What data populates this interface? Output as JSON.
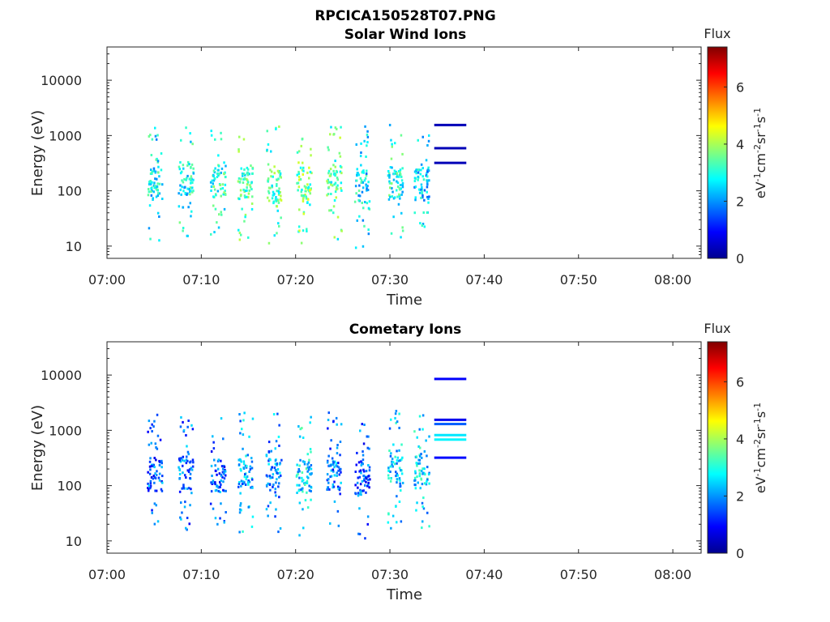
{
  "figure_title": "RPCICA150528T07.PNG",
  "chart_data": [
    {
      "type": "heatmap",
      "title": "Solar Wind Ions",
      "xlabel": "Time",
      "ylabel": "Energy (eV)",
      "x_ticks": [
        "07:00",
        "07:10",
        "07:20",
        "07:30",
        "07:40",
        "07:50",
        "08:00"
      ],
      "x_tick_minutes": [
        0,
        10,
        20,
        30,
        40,
        50,
        60
      ],
      "xlim_minutes": [
        0,
        63
      ],
      "y_scale": "log",
      "y_ticks": [
        "10",
        "100",
        "1000",
        "10000"
      ],
      "y_tick_values": [
        10,
        100,
        1000,
        10000
      ],
      "ylim": [
        6,
        40000
      ],
      "colorbar": {
        "label": "Flux",
        "unit": "eV-1cm-2sr-1s-1",
        "ticks": [
          "0",
          "2",
          "4",
          "6"
        ],
        "tick_values": [
          0,
          2,
          4,
          6
        ],
        "range": [
          0,
          7.4
        ],
        "colormap": "jet"
      },
      "clusters": [
        {
          "t": 5.0,
          "e": 130,
          "flux": 2.7
        },
        {
          "t": 8.3,
          "e": 160,
          "flux": 2.8
        },
        {
          "t": 11.7,
          "e": 140,
          "flux": 3.1
        },
        {
          "t": 14.6,
          "e": 130,
          "flux": 3.3
        },
        {
          "t": 17.6,
          "e": 120,
          "flux": 3.4
        },
        {
          "t": 20.8,
          "e": 130,
          "flux": 3.6
        },
        {
          "t": 24.0,
          "e": 140,
          "flux": 3.4
        },
        {
          "t": 27.0,
          "e": 110,
          "flux": 2.6
        },
        {
          "t": 30.5,
          "e": 130,
          "flux": 2.9
        },
        {
          "t": 33.3,
          "e": 120,
          "flux": 2.4
        }
      ],
      "bands": [
        {
          "t_start": 34.7,
          "t_end": 38.1,
          "e": 1550,
          "flux": 0.4
        },
        {
          "t_start": 34.7,
          "t_end": 38.1,
          "e": 590,
          "flux": 0.4
        },
        {
          "t_start": 34.7,
          "t_end": 38.1,
          "e": 320,
          "flux": 0.4
        }
      ]
    },
    {
      "type": "heatmap",
      "title": "Cometary Ions",
      "xlabel": "Time",
      "ylabel": "Energy (eV)",
      "x_ticks": [
        "07:00",
        "07:10",
        "07:20",
        "07:30",
        "07:40",
        "07:50",
        "08:00"
      ],
      "x_tick_minutes": [
        0,
        10,
        20,
        30,
        40,
        50,
        60
      ],
      "xlim_minutes": [
        0,
        63
      ],
      "y_scale": "log",
      "y_ticks": [
        "10",
        "100",
        "1000",
        "10000"
      ],
      "y_tick_values": [
        10,
        100,
        1000,
        10000
      ],
      "ylim": [
        6,
        40000
      ],
      "colorbar": {
        "label": "Flux",
        "unit": "eV-1cm-2sr-1s-1",
        "ticks": [
          "0",
          "2",
          "4",
          "6"
        ],
        "tick_values": [
          0,
          2,
          4,
          6
        ],
        "range": [
          0,
          7.4
        ],
        "colormap": "jet"
      },
      "clusters": [
        {
          "t": 5.0,
          "e": 150,
          "flux": 1.6
        },
        {
          "t": 8.3,
          "e": 160,
          "flux": 1.7
        },
        {
          "t": 11.7,
          "e": 140,
          "flux": 1.6
        },
        {
          "t": 14.6,
          "e": 170,
          "flux": 2.2
        },
        {
          "t": 17.6,
          "e": 150,
          "flux": 2.0
        },
        {
          "t": 20.8,
          "e": 140,
          "flux": 2.6
        },
        {
          "t": 24.0,
          "e": 160,
          "flux": 1.8
        },
        {
          "t": 27.0,
          "e": 130,
          "flux": 1.5
        },
        {
          "t": 30.5,
          "e": 180,
          "flux": 2.4
        },
        {
          "t": 33.3,
          "e": 170,
          "flux": 2.5
        }
      ],
      "bands": [
        {
          "t_start": 34.7,
          "t_end": 38.1,
          "e": 8500,
          "flux": 0.9
        },
        {
          "t_start": 34.7,
          "t_end": 38.1,
          "e": 1550,
          "flux": 0.8
        },
        {
          "t_start": 34.7,
          "t_end": 38.1,
          "e": 1300,
          "flux": 1.6
        },
        {
          "t_start": 34.7,
          "t_end": 38.1,
          "e": 820,
          "flux": 2.6
        },
        {
          "t_start": 34.7,
          "t_end": 38.1,
          "e": 680,
          "flux": 2.7
        },
        {
          "t_start": 34.7,
          "t_end": 38.1,
          "e": 320,
          "flux": 1.0
        }
      ]
    }
  ]
}
